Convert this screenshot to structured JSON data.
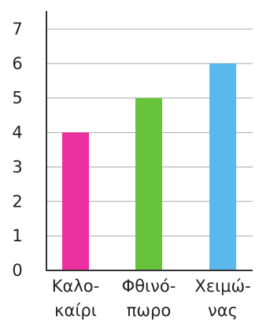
{
  "chart_data": {
    "type": "bar",
    "categories": [
      {
        "line1": "Καλο-",
        "line2": "καίρι"
      },
      {
        "line1": "Φθινό-",
        "line2": "πωρο"
      },
      {
        "line1": "Χειμώ-",
        "line2": "νας"
      }
    ],
    "values": [
      4,
      5,
      6
    ],
    "colors": [
      "#ec2f9e",
      "#66c33a",
      "#5ab9ec"
    ],
    "ylim": [
      0,
      7
    ],
    "yticks": [
      "0",
      "1",
      "2",
      "3",
      "4",
      "5",
      "6",
      "7"
    ],
    "grid": true
  }
}
